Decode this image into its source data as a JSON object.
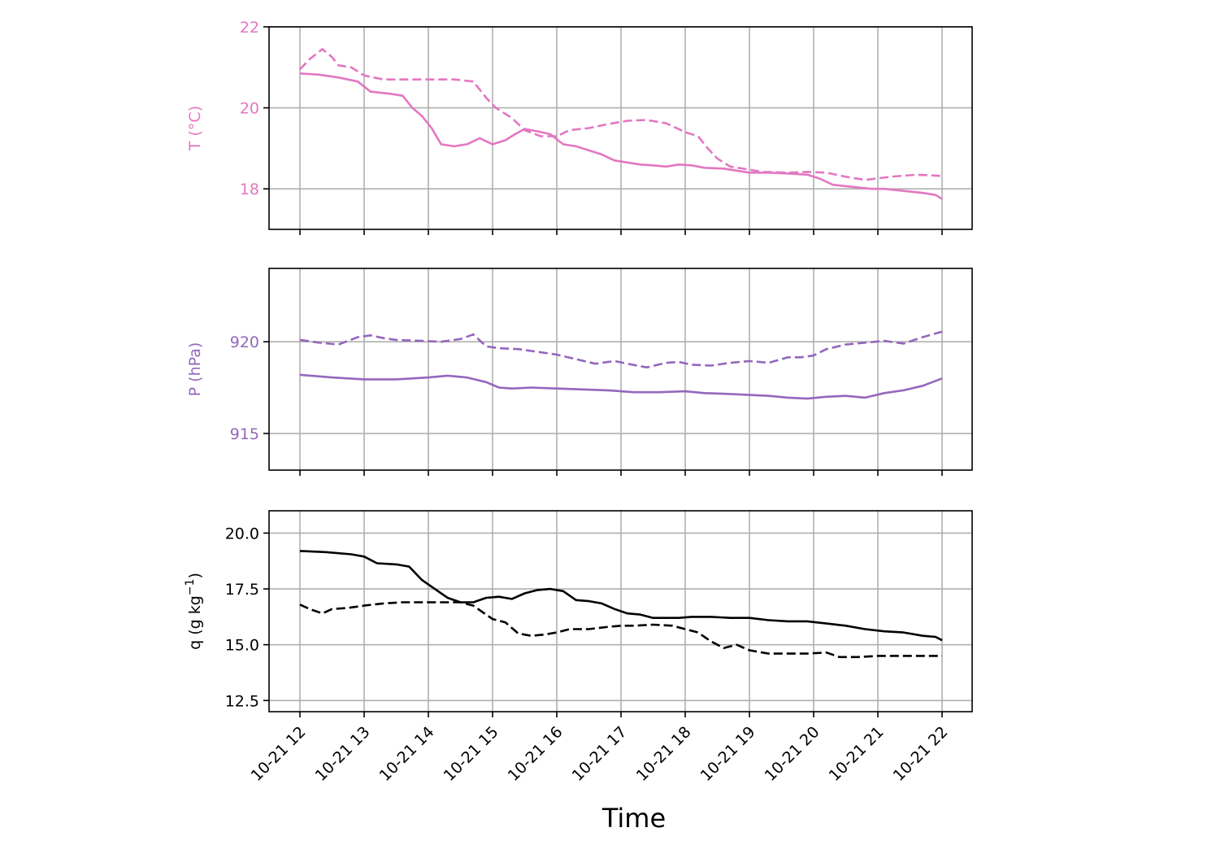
{
  "chart_data": {
    "type": "line",
    "xlabel": "Time",
    "x_tick_labels": [
      "10-21 12",
      "10-21 13",
      "10-21 14",
      "10-21 15",
      "10-21 16",
      "10-21 17",
      "10-21 18",
      "10-21 19",
      "10-21 20",
      "10-21 21",
      "10-21 22"
    ],
    "panels": [
      {
        "id": "temperature",
        "ylabel": "T (°C)",
        "color": "#e377c2",
        "ylim": [
          17,
          22
        ],
        "yticks": [
          18,
          20,
          22
        ],
        "ytick_labels": [
          "18",
          "20",
          "22"
        ],
        "grid": true,
        "series": [
          {
            "style": "solid",
            "x": [
              12.0,
              12.3,
              12.6,
              12.9,
              13.1,
              13.4,
              13.6,
              13.75,
              13.9,
              14.05,
              14.2,
              14.4,
              14.6,
              14.8,
              15.0,
              15.2,
              15.35,
              15.5,
              15.7,
              15.9,
              16.1,
              16.3,
              16.5,
              16.7,
              16.9,
              17.1,
              17.3,
              17.5,
              17.7,
              17.9,
              18.1,
              18.3,
              18.6,
              18.8,
              19.0,
              19.3,
              19.6,
              19.9,
              20.1,
              20.3,
              20.6,
              20.9,
              21.1,
              21.4,
              21.7,
              21.9,
              22.0
            ],
            "y": [
              20.85,
              20.82,
              20.75,
              20.65,
              20.4,
              20.35,
              20.3,
              20.0,
              19.8,
              19.5,
              19.1,
              19.05,
              19.1,
              19.25,
              19.1,
              19.2,
              19.35,
              19.48,
              19.42,
              19.35,
              19.1,
              19.05,
              18.95,
              18.85,
              18.7,
              18.65,
              18.6,
              18.58,
              18.55,
              18.6,
              18.58,
              18.52,
              18.5,
              18.45,
              18.4,
              18.4,
              18.38,
              18.35,
              18.25,
              18.1,
              18.05,
              18.0,
              18.0,
              17.95,
              17.9,
              17.85,
              17.75
            ]
          },
          {
            "style": "dashed",
            "x": [
              12.0,
              12.15,
              12.35,
              12.5,
              12.6,
              12.8,
              13.0,
              13.3,
              13.6,
              14.0,
              14.4,
              14.7,
              14.9,
              15.05,
              15.3,
              15.5,
              15.75,
              16.0,
              16.2,
              16.5,
              16.8,
              17.1,
              17.4,
              17.7,
              18.0,
              18.2,
              18.35,
              18.5,
              18.7,
              18.9,
              19.2,
              19.6,
              19.9,
              20.2,
              20.5,
              20.8,
              21.2,
              21.6,
              22.0
            ],
            "y": [
              20.95,
              21.2,
              21.45,
              21.25,
              21.05,
              21.0,
              20.8,
              20.7,
              20.7,
              20.7,
              20.7,
              20.65,
              20.25,
              20.0,
              19.75,
              19.45,
              19.3,
              19.3,
              19.45,
              19.5,
              19.6,
              19.68,
              19.7,
              19.62,
              19.4,
              19.3,
              19.0,
              18.75,
              18.55,
              18.5,
              18.42,
              18.4,
              18.42,
              18.4,
              18.3,
              18.22,
              18.3,
              18.35,
              18.32
            ]
          }
        ]
      },
      {
        "id": "pressure",
        "ylabel": "P (hPa)",
        "color": "#9467bd",
        "ylim": [
          913,
          924
        ],
        "yticks": [
          915,
          920
        ],
        "ytick_labels": [
          "915",
          "920"
        ],
        "grid": true,
        "series": [
          {
            "style": "solid",
            "x": [
              12.0,
              12.5,
              13.0,
              13.5,
              14.0,
              14.3,
              14.6,
              14.9,
              15.1,
              15.3,
              15.6,
              16.0,
              16.4,
              16.8,
              17.2,
              17.6,
              18.0,
              18.3,
              18.7,
              19.0,
              19.3,
              19.6,
              19.9,
              20.2,
              20.5,
              20.8,
              21.1,
              21.4,
              21.7,
              22.0
            ],
            "y": [
              918.2,
              918.05,
              917.95,
              917.95,
              918.05,
              918.15,
              918.05,
              917.8,
              917.5,
              917.45,
              917.5,
              917.45,
              917.4,
              917.35,
              917.25,
              917.25,
              917.3,
              917.2,
              917.15,
              917.1,
              917.05,
              916.95,
              916.9,
              917.0,
              917.05,
              916.95,
              917.2,
              917.35,
              917.6,
              918.0
            ]
          },
          {
            "style": "dashed",
            "x": [
              12.0,
              12.3,
              12.6,
              12.9,
              13.1,
              13.3,
              13.5,
              13.9,
              14.2,
              14.5,
              14.7,
              14.9,
              15.1,
              15.4,
              15.7,
              16.0,
              16.3,
              16.6,
              16.9,
              17.1,
              17.4,
              17.7,
              17.9,
              18.1,
              18.4,
              18.7,
              19.0,
              19.3,
              19.6,
              19.8,
              20.0,
              20.2,
              20.5,
              20.8,
              21.1,
              21.4,
              21.7,
              22.0
            ],
            "y": [
              920.1,
              919.95,
              919.85,
              920.25,
              920.35,
              920.2,
              920.1,
              920.05,
              920.0,
              920.15,
              920.4,
              919.75,
              919.65,
              919.6,
              919.45,
              919.3,
              919.05,
              918.8,
              918.95,
              918.8,
              918.6,
              918.85,
              918.9,
              918.75,
              918.7,
              918.85,
              918.95,
              918.85,
              919.15,
              919.15,
              919.25,
              919.6,
              919.85,
              919.95,
              920.05,
              919.9,
              920.25,
              920.55
            ]
          }
        ]
      },
      {
        "id": "humidity",
        "ylabel": "q (g kg⁻¹)",
        "color": "#000000",
        "ylim": [
          12.0,
          21.0
        ],
        "yticks": [
          12.5,
          15.0,
          17.5,
          20.0
        ],
        "ytick_labels": [
          "12.5",
          "15.0",
          "17.5",
          "20.0"
        ],
        "grid": true,
        "series": [
          {
            "style": "solid",
            "x": [
              12.0,
              12.4,
              12.8,
              13.0,
              13.2,
              13.5,
              13.7,
              13.9,
              14.1,
              14.3,
              14.5,
              14.7,
              14.9,
              15.1,
              15.3,
              15.5,
              15.7,
              15.9,
              16.1,
              16.3,
              16.5,
              16.7,
              16.9,
              17.1,
              17.3,
              17.5,
              17.7,
              17.9,
              18.1,
              18.4,
              18.7,
              19.0,
              19.3,
              19.6,
              19.9,
              20.2,
              20.5,
              20.8,
              21.1,
              21.4,
              21.7,
              21.9,
              22.0
            ],
            "y": [
              19.2,
              19.15,
              19.05,
              18.95,
              18.65,
              18.6,
              18.5,
              17.9,
              17.5,
              17.1,
              16.9,
              16.9,
              17.1,
              17.15,
              17.05,
              17.3,
              17.45,
              17.5,
              17.4,
              17.0,
              16.95,
              16.85,
              16.6,
              16.4,
              16.35,
              16.2,
              16.2,
              16.2,
              16.25,
              16.25,
              16.2,
              16.2,
              16.1,
              16.05,
              16.05,
              15.95,
              15.85,
              15.7,
              15.6,
              15.55,
              15.4,
              15.35,
              15.2
            ]
          },
          {
            "style": "dashed",
            "x": [
              12.0,
              12.15,
              12.35,
              12.5,
              12.75,
              13.0,
              13.3,
              13.6,
              13.9,
              14.2,
              14.5,
              14.7,
              14.85,
              15.0,
              15.2,
              15.4,
              15.6,
              15.8,
              16.0,
              16.2,
              16.5,
              16.8,
              17.0,
              17.2,
              17.5,
              17.8,
              18.0,
              18.2,
              18.4,
              18.6,
              18.8,
              19.0,
              19.3,
              19.6,
              19.9,
              20.2,
              20.4,
              20.7,
              21.0,
              21.4,
              21.7,
              22.0
            ],
            "y": [
              16.8,
              16.6,
              16.4,
              16.6,
              16.65,
              16.75,
              16.85,
              16.9,
              16.9,
              16.9,
              16.9,
              16.75,
              16.45,
              16.15,
              16.0,
              15.5,
              15.4,
              15.45,
              15.55,
              15.7,
              15.7,
              15.8,
              15.85,
              15.85,
              15.9,
              15.85,
              15.7,
              15.55,
              15.15,
              14.85,
              15.0,
              14.75,
              14.6,
              14.6,
              14.6,
              14.65,
              14.45,
              14.45,
              14.5,
              14.5,
              14.5,
              14.5
            ]
          }
        ]
      }
    ]
  }
}
